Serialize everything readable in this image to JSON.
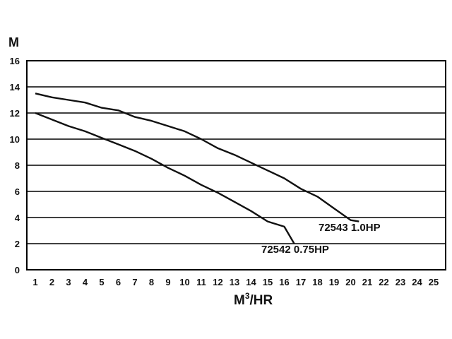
{
  "chart_data": {
    "type": "line",
    "title": "",
    "ylabel": "M",
    "xlabel_base": "M",
    "xlabel_sup": "3",
    "xlabel_rest": "/HR",
    "xlim": [
      1,
      25
    ],
    "ylim": [
      0,
      16
    ],
    "x_ticks": [
      1,
      2,
      3,
      4,
      5,
      6,
      7,
      8,
      9,
      10,
      11,
      12,
      13,
      14,
      15,
      16,
      17,
      18,
      19,
      20,
      21,
      22,
      23,
      24,
      25
    ],
    "y_ticks": [
      0,
      2,
      4,
      6,
      8,
      10,
      12,
      14,
      16
    ],
    "grid": "horizontal",
    "legend": "none",
    "series": [
      {
        "name": "72543 1.0HP",
        "color": "#111111",
        "points": [
          [
            1,
            13.5
          ],
          [
            2,
            13.2
          ],
          [
            3,
            13.0
          ],
          [
            4,
            12.8
          ],
          [
            5,
            12.4
          ],
          [
            6,
            12.2
          ],
          [
            7,
            11.7
          ],
          [
            8,
            11.4
          ],
          [
            9,
            11.0
          ],
          [
            10,
            10.6
          ],
          [
            11,
            10.0
          ],
          [
            12,
            9.3
          ],
          [
            13,
            8.8
          ],
          [
            14,
            8.2
          ],
          [
            15,
            7.6
          ],
          [
            16,
            7.0
          ],
          [
            17,
            6.2
          ],
          [
            18,
            5.6
          ],
          [
            19,
            4.7
          ],
          [
            20,
            3.8
          ],
          [
            20.5,
            3.7
          ]
        ]
      },
      {
        "name": "72542 0.75HP",
        "color": "#111111",
        "points": [
          [
            1,
            12.0
          ],
          [
            2,
            11.5
          ],
          [
            3,
            11.0
          ],
          [
            4,
            10.6
          ],
          [
            5,
            10.1
          ],
          [
            6,
            9.6
          ],
          [
            7,
            9.1
          ],
          [
            8,
            8.5
          ],
          [
            9,
            7.8
          ],
          [
            10,
            7.2
          ],
          [
            11,
            6.5
          ],
          [
            12,
            5.9
          ],
          [
            13,
            5.2
          ],
          [
            14,
            4.5
          ],
          [
            15,
            3.7
          ],
          [
            16,
            3.3
          ],
          [
            16.6,
            2.0
          ]
        ]
      }
    ]
  }
}
